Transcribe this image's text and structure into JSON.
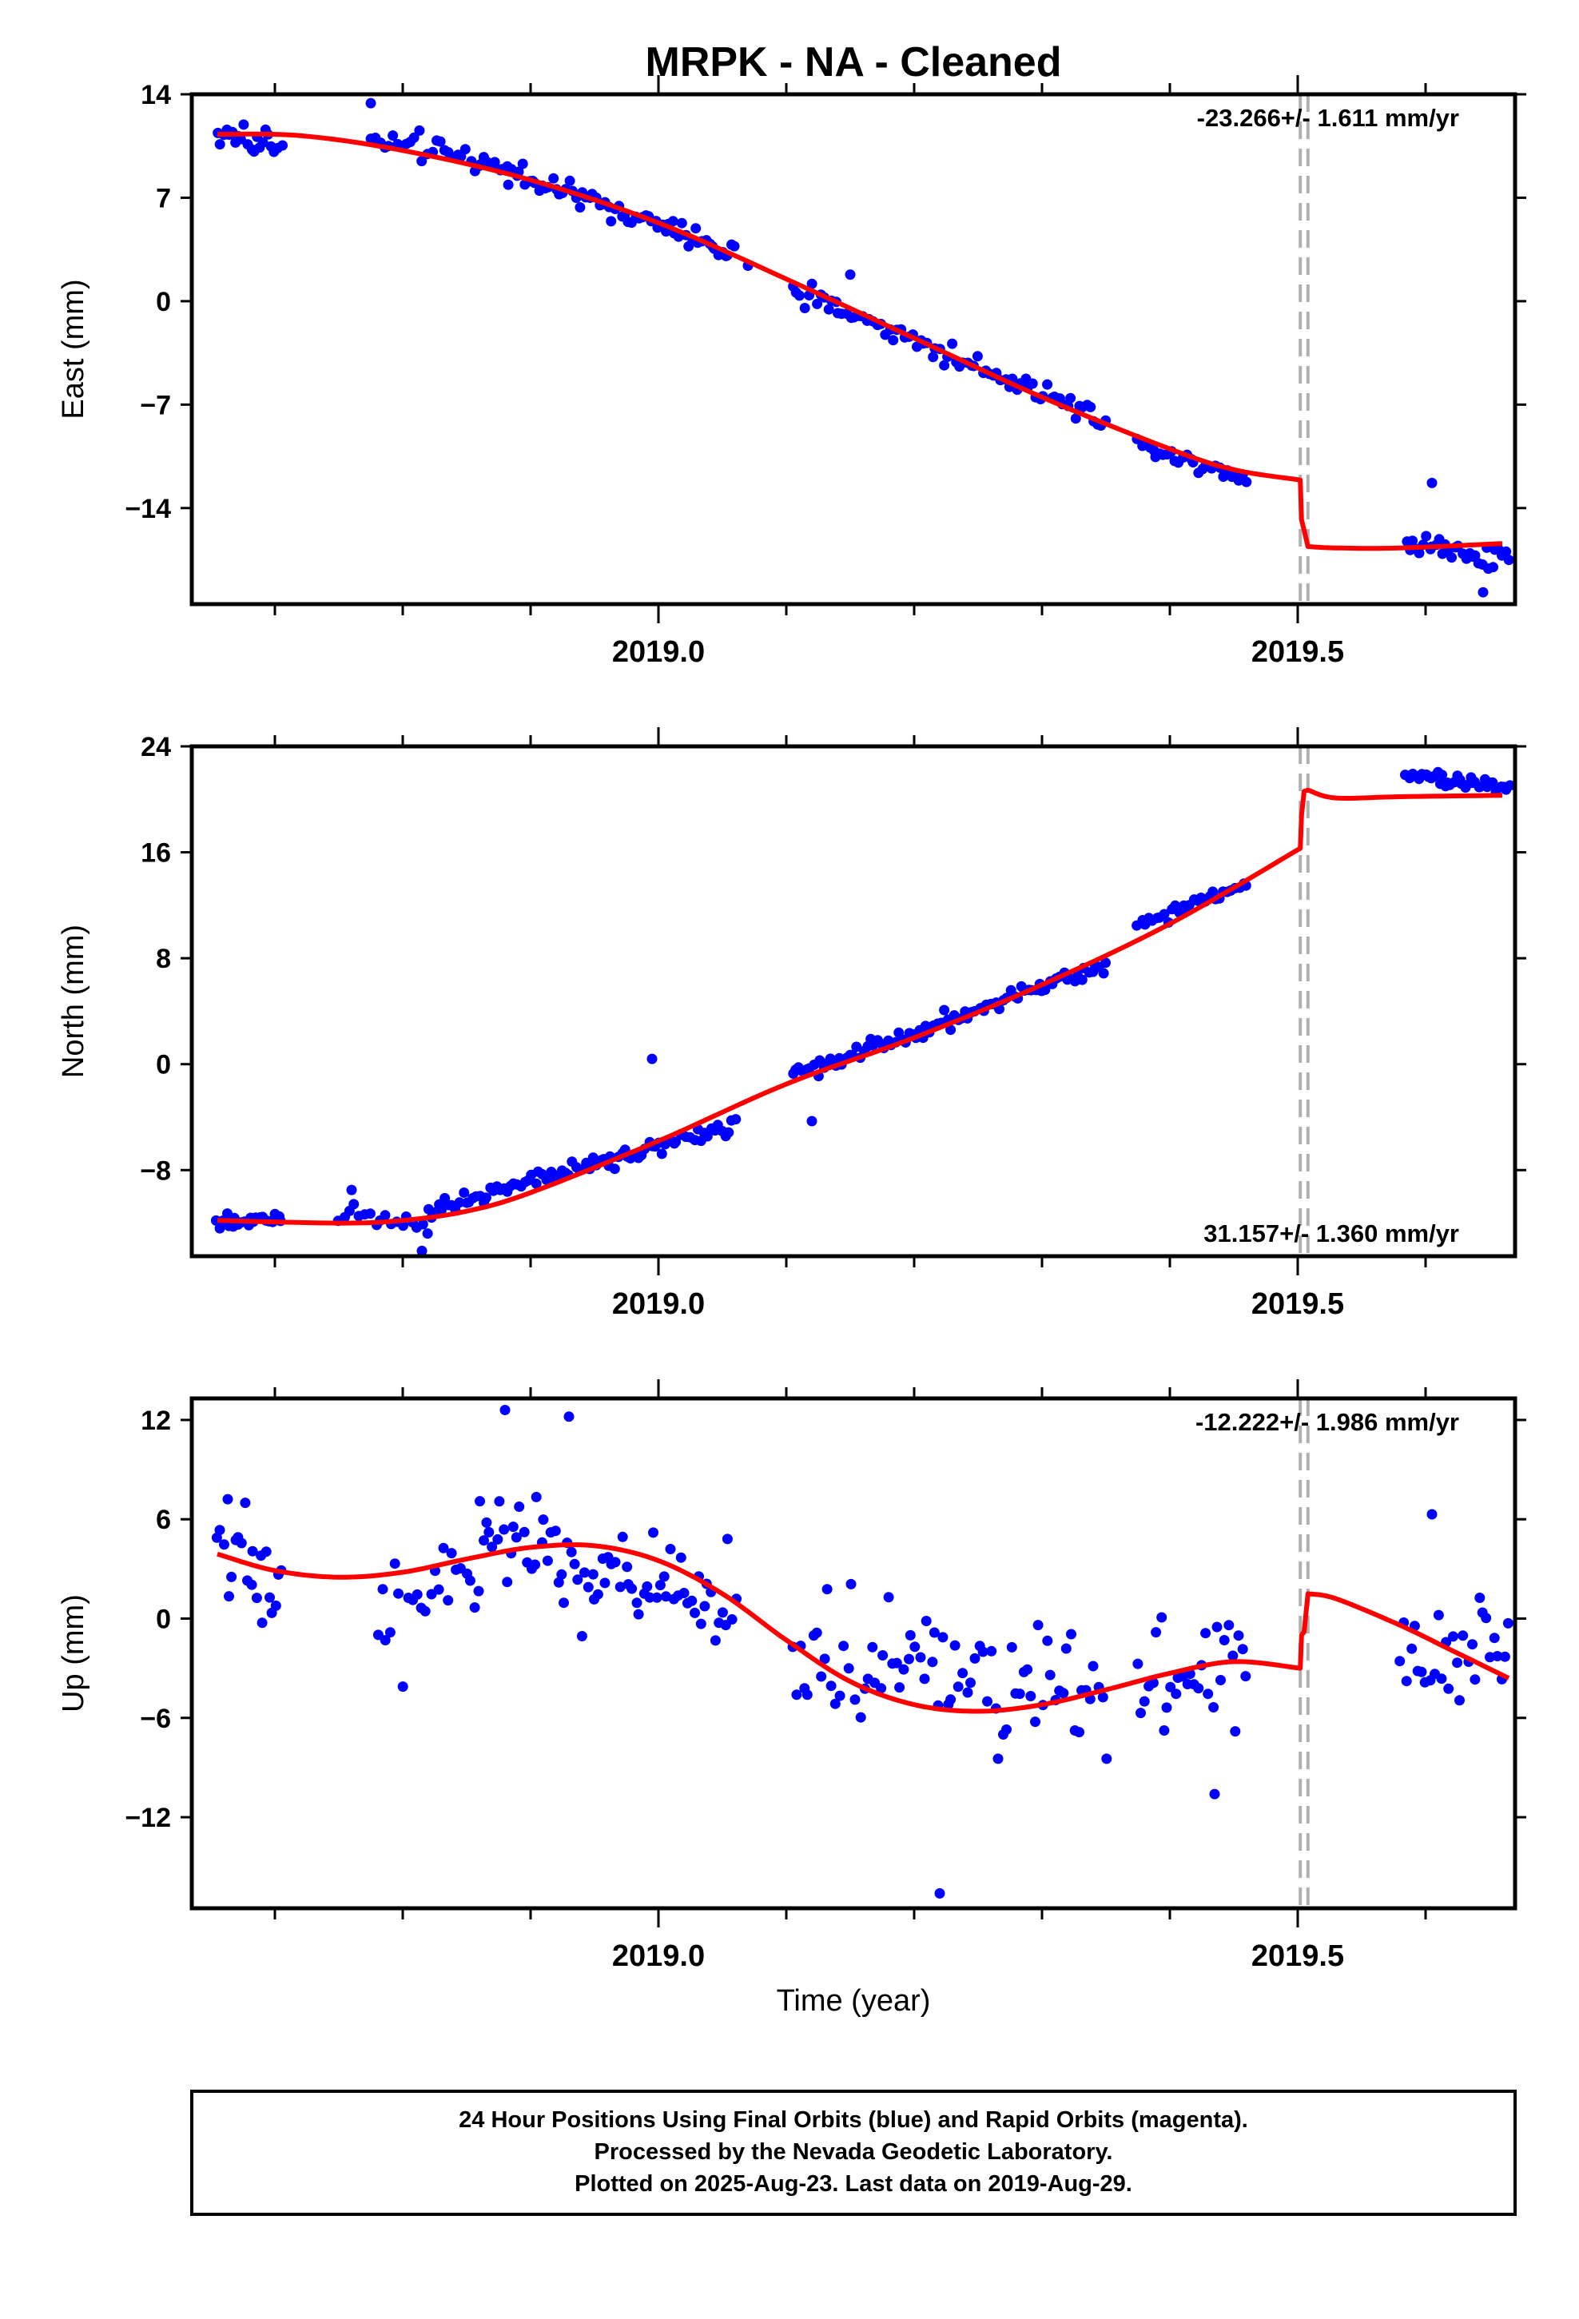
{
  "title": "MRPK  - NA - Cleaned",
  "xlabel": "Time (year)",
  "footer": {
    "line1": "24 Hour Positions Using Final Orbits (blue) and Rapid Orbits (magenta).",
    "line2": "Processed by the Nevada Geodetic Laboratory.",
    "line3": "Plotted on 2025-Aug-23. Last data on 2019-Aug-29."
  },
  "colors": {
    "data": "#0000ff",
    "model": "#ff0000",
    "break": "#b0b0b0"
  },
  "chart_data": [
    {
      "type": "scatter",
      "name": "east",
      "ylabel": "East (mm)",
      "rate_text": "-23.266+/- 1.611 mm/yr",
      "rate_position": "top-right",
      "xlim": [
        2018.635,
        2019.67
      ],
      "ylim": [
        -20.5,
        14
      ],
      "yticks": [
        14,
        7,
        0,
        -7,
        -14
      ],
      "ytick_labels": [
        "14",
        "7",
        "0",
        "−7",
        "−14"
      ],
      "xticks_major": [
        2019.0,
        2019.5
      ],
      "xtick_labels": [
        "2019.0",
        "2019.5"
      ],
      "xticks_minor": [
        2018.7,
        2018.8,
        2018.9,
        2019.1,
        2019.2,
        2019.3,
        2019.4,
        2019.6
      ],
      "breaks": [
        2019.502,
        2019.508
      ],
      "model_anchors": [
        [
          2018.655,
          11.3
        ],
        [
          2018.72,
          11.2
        ],
        [
          2018.8,
          10.2
        ],
        [
          2018.9,
          8.2
        ],
        [
          2019.0,
          5.3
        ],
        [
          2019.1,
          1.5
        ],
        [
          2019.2,
          -2.5
        ],
        [
          2019.3,
          -6.5
        ],
        [
          2019.4,
          -10.0
        ],
        [
          2019.45,
          -11.4
        ],
        [
          2019.502,
          -12.1
        ]
      ],
      "model_step": {
        "x": [
          2019.503,
          2019.505,
          2019.508
        ],
        "y": [
          -14.8,
          -15.5,
          -16.6
        ]
      },
      "model_after": [
        [
          2019.508,
          -16.6
        ],
        [
          2019.53,
          -16.7
        ],
        [
          2019.58,
          -16.7
        ],
        [
          2019.66,
          -16.4
        ]
      ],
      "points_gen": [
        {
          "x0": 2018.655,
          "x1": 2018.705,
          "y0": 11.3,
          "y1": 10.5,
          "n": 22,
          "noise": 1.6
        },
        {
          "x0": 2018.775,
          "x1": 2018.86,
          "y0": 11.0,
          "y1": 9.6,
          "n": 26,
          "noise": 1.4
        },
        {
          "x0": 2018.86,
          "x1": 2019.06,
          "y0": 9.6,
          "y1": 3.2,
          "n": 78,
          "noise": 1.4
        },
        {
          "x0": 2019.105,
          "x1": 2019.35,
          "y0": 0.8,
          "y1": -8.0,
          "n": 82,
          "noise": 1.4
        },
        {
          "x0": 2019.375,
          "x1": 2019.46,
          "y0": -9.6,
          "y1": -12.0,
          "n": 30,
          "noise": 1.3
        },
        {
          "x0": 2019.585,
          "x1": 2019.665,
          "y0": -16.4,
          "y1": -17.3,
          "n": 32,
          "noise": 1.6
        }
      ],
      "points_extra": [
        [
          2018.775,
          13.4
        ],
        [
          2019.605,
          -12.3
        ],
        [
          2019.645,
          -19.7
        ],
        [
          2019.07,
          2.4
        ],
        [
          2019.15,
          1.8
        ]
      ]
    },
    {
      "type": "scatter",
      "name": "north",
      "ylabel": "North (mm)",
      "rate_text": "31.157+/- 1.360 mm/yr",
      "rate_position": "bottom-right",
      "xlim": [
        2018.635,
        2019.67
      ],
      "ylim": [
        -14.5,
        24
      ],
      "yticks": [
        24,
        16,
        8,
        0,
        -8
      ],
      "ytick_labels": [
        "24",
        "16",
        "8",
        "0",
        "−8"
      ],
      "xticks_major": [
        2019.0,
        2019.5
      ],
      "xtick_labels": [
        "2019.0",
        "2019.5"
      ],
      "xticks_minor": [
        2018.7,
        2018.8,
        2018.9,
        2019.1,
        2019.2,
        2019.3,
        2019.4,
        2019.6
      ],
      "breaks": [
        2019.502,
        2019.508
      ],
      "model_anchors": [
        [
          2018.655,
          -11.8
        ],
        [
          2018.75,
          -12.0
        ],
        [
          2018.8,
          -11.8
        ],
        [
          2018.85,
          -11.1
        ],
        [
          2018.9,
          -9.7
        ],
        [
          2019.0,
          -5.8
        ],
        [
          2019.1,
          -1.5
        ],
        [
          2019.2,
          2.0
        ],
        [
          2019.3,
          6.0
        ],
        [
          2019.4,
          10.6
        ],
        [
          2019.502,
          16.3
        ]
      ],
      "model_step": {
        "x": [
          2019.503,
          2019.505,
          2019.508
        ],
        "y": [
          18.8,
          20.6,
          20.7
        ]
      },
      "model_after": [
        [
          2019.508,
          20.7
        ],
        [
          2019.53,
          20.1
        ],
        [
          2019.58,
          20.2
        ],
        [
          2019.66,
          20.3
        ]
      ],
      "points_gen": [
        {
          "x0": 2018.655,
          "x1": 2018.705,
          "y0": -11.9,
          "y1": -11.7,
          "n": 22,
          "noise": 0.9
        },
        {
          "x0": 2018.75,
          "x1": 2018.82,
          "y0": -11.0,
          "y1": -12.0,
          "n": 18,
          "noise": 1.4
        },
        {
          "x0": 2018.82,
          "x1": 2019.06,
          "y0": -11.0,
          "y1": -4.5,
          "n": 90,
          "noise": 1.2
        },
        {
          "x0": 2019.105,
          "x1": 2019.35,
          "y0": -1.0,
          "y1": 7.5,
          "n": 90,
          "noise": 1.2
        },
        {
          "x0": 2019.375,
          "x1": 2019.46,
          "y0": 10.5,
          "y1": 13.5,
          "n": 30,
          "noise": 1.1
        },
        {
          "x0": 2019.585,
          "x1": 2019.665,
          "y0": 22.0,
          "y1": 20.8,
          "n": 38,
          "noise": 0.9
        }
      ],
      "points_extra": [
        [
          2018.995,
          0.4
        ],
        [
          2018.76,
          -9.5
        ],
        [
          2018.815,
          -14.1
        ],
        [
          2019.12,
          -4.3
        ]
      ]
    },
    {
      "type": "scatter",
      "name": "up",
      "ylabel": "Up (mm)",
      "rate_text": "-12.222+/- 1.986 mm/yr",
      "rate_position": "top-right",
      "xlim": [
        2018.635,
        2019.67
      ],
      "ylim": [
        -17.5,
        13.3
      ],
      "yticks": [
        12,
        6,
        0,
        -6,
        -12
      ],
      "ytick_labels": [
        "12",
        "6",
        "0",
        "−6",
        "−12"
      ],
      "xticks_major": [
        2019.0,
        2019.5
      ],
      "xtick_labels": [
        "2019.0",
        "2019.5"
      ],
      "xticks_minor": [
        2018.7,
        2018.8,
        2018.9,
        2019.1,
        2019.2,
        2019.3,
        2019.4,
        2019.6
      ],
      "breaks": [
        2019.502,
        2019.508
      ],
      "model_anchors": [
        [
          2018.655,
          3.9
        ],
        [
          2018.7,
          2.9
        ],
        [
          2018.75,
          2.5
        ],
        [
          2018.8,
          2.8
        ],
        [
          2018.85,
          3.6
        ],
        [
          2018.9,
          4.3
        ],
        [
          2018.95,
          4.4
        ],
        [
          2019.0,
          3.5
        ],
        [
          2019.05,
          1.5
        ],
        [
          2019.1,
          -1.3
        ],
        [
          2019.15,
          -3.8
        ],
        [
          2019.2,
          -5.2
        ],
        [
          2019.25,
          -5.6
        ],
        [
          2019.3,
          -5.2
        ],
        [
          2019.35,
          -4.3
        ],
        [
          2019.4,
          -3.3
        ],
        [
          2019.45,
          -2.6
        ],
        [
          2019.502,
          -3.0
        ]
      ],
      "model_step": {
        "x": [
          2019.503,
          2019.505,
          2019.508
        ],
        "y": [
          -1.0,
          -0.8,
          1.5
        ]
      },
      "model_after": [
        [
          2019.508,
          1.5
        ],
        [
          2019.53,
          1.2
        ],
        [
          2019.58,
          -0.4
        ],
        [
          2019.62,
          -1.9
        ],
        [
          2019.665,
          -3.6
        ]
      ],
      "points_gen": [
        {
          "x0": 2018.655,
          "x1": 2018.705,
          "y0": 4.0,
          "y1": 2.0,
          "n": 22,
          "noise": 6.0
        },
        {
          "x0": 2018.78,
          "x1": 2018.86,
          "y0": 0.5,
          "y1": 3.5,
          "n": 24,
          "noise": 6.5
        },
        {
          "x0": 2018.86,
          "x1": 2019.06,
          "y0": 4.5,
          "y1": 1.0,
          "n": 76,
          "noise": 6.0
        },
        {
          "x0": 2019.105,
          "x1": 2019.35,
          "y0": -2.0,
          "y1": -5.0,
          "n": 80,
          "noise": 6.5
        },
        {
          "x0": 2019.375,
          "x1": 2019.46,
          "y0": -4.0,
          "y1": -3.0,
          "n": 30,
          "noise": 6.0
        },
        {
          "x0": 2019.58,
          "x1": 2019.665,
          "y0": -1.5,
          "y1": -3.0,
          "n": 30,
          "noise": 6.5
        }
      ],
      "points_extra": [
        [
          2018.88,
          12.6
        ],
        [
          2019.22,
          -16.6
        ],
        [
          2018.93,
          12.2
        ],
        [
          2019.605,
          6.3
        ],
        [
          2019.435,
          -10.6
        ]
      ]
    }
  ]
}
